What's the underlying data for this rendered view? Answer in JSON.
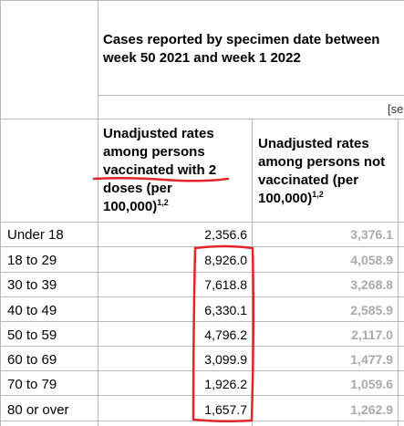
{
  "header": {
    "title": "Cases reported by specimen date between week 50 2021 and week 1 2022",
    "bracket_text": "[se"
  },
  "columns": {
    "col1_label": "Unadjusted rates among persons vaccinated with 2 doses (per 100,000)",
    "col1_lines": [
      "Unadjusted rates",
      "among persons",
      "vaccinated with 2",
      "doses (per",
      "100,000)"
    ],
    "col1_sup": "1,2",
    "col2_lines": [
      "Unadjusted rates",
      "among persons not",
      "vaccinated (per",
      "100,000)"
    ],
    "col2_sup": "1,2"
  },
  "rows": [
    {
      "age": "Under 18",
      "vaccinated": "2,356.6",
      "unvaccinated": "3,376.1"
    },
    {
      "age": "18 to 29",
      "vaccinated": "8,926.0",
      "unvaccinated": "4,058.9"
    },
    {
      "age": "30 to 39",
      "vaccinated": "7,618.8",
      "unvaccinated": "3,268.8"
    },
    {
      "age": "40 to 49",
      "vaccinated": "6,330.1",
      "unvaccinated": "2,585.9"
    },
    {
      "age": "50 to 59",
      "vaccinated": "4,796.2",
      "unvaccinated": "2,117.0"
    },
    {
      "age": "60 to 69",
      "vaccinated": "3,099.9",
      "unvaccinated": "1,477.9"
    },
    {
      "age": "70 to 79",
      "vaccinated": "1,926.2",
      "unvaccinated": "1,059.6"
    },
    {
      "age": "80 or over",
      "vaccinated": "1,657.7",
      "unvaccinated": "1,262.9"
    }
  ],
  "annotation_color": "#e0262b"
}
